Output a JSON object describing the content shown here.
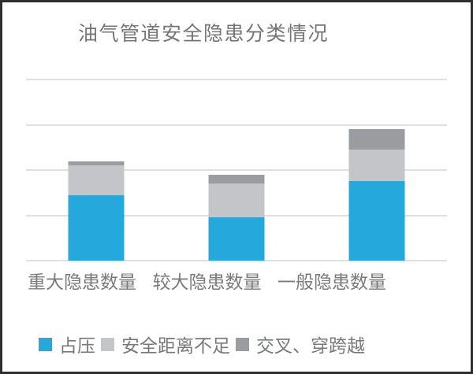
{
  "chart_data": {
    "type": "bar",
    "stacked": true,
    "title": "油气管道安全隐患分类情况",
    "categories": [
      "重大隐患数量",
      "较大隐患数量",
      "一般隐患数量"
    ],
    "series": [
      {
        "name": "占压",
        "color": "#25a9dc",
        "values": [
          1.45,
          0.95,
          1.75
        ]
      },
      {
        "name": "安全距离不足",
        "color": "#c4c5c9",
        "values": [
          0.65,
          0.75,
          0.7
        ]
      },
      {
        "name": "交叉、穿跨越",
        "color": "#9b9ca0",
        "values": [
          0.1,
          0.2,
          0.45
        ]
      }
    ],
    "xlabel": "",
    "ylabel": "",
    "ylim": [
      0,
      4
    ],
    "gridline_interval": 1,
    "grid": "on",
    "y_tick_labels_visible": false,
    "legend_position": "bottom"
  },
  "colors": {
    "background": "#ffffff",
    "frame_border": "#2e2e2e",
    "gridline": "#e0e0e0",
    "title_text": "#757575",
    "axis_label_text": "#7b7b7b",
    "legend_text": "#77787c"
  }
}
